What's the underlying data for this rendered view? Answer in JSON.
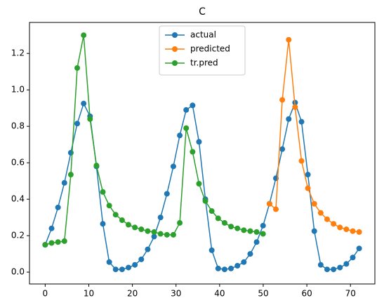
{
  "chart_data": {
    "type": "line",
    "title": "C",
    "x": [
      0,
      1.47,
      2.94,
      4.41,
      5.88,
      7.35,
      8.82,
      10.29,
      11.76,
      13.22,
      14.69,
      16.16,
      17.63,
      19.1,
      20.57,
      22.04,
      23.51,
      24.98,
      26.45,
      27.92,
      29.39,
      30.86,
      32.33,
      33.8,
      35.27,
      36.73,
      38.2,
      39.67,
      41.14,
      42.61,
      44.08,
      45.55,
      47.02,
      48.49,
      49.96,
      51.43,
      52.9,
      54.37,
      55.84,
      57.31,
      58.78,
      60.24,
      61.71,
      63.18,
      64.65,
      66.12,
      67.59,
      69.06,
      70.53,
      72
    ],
    "series": [
      {
        "name": "actual",
        "color": "#1f77b4",
        "values": [
          0.15,
          0.24,
          0.355,
          0.49,
          0.655,
          0.815,
          0.925,
          0.855,
          0.58,
          0.265,
          0.055,
          0.015,
          0.015,
          0.025,
          0.04,
          0.07,
          0.125,
          0.195,
          0.3,
          0.43,
          0.58,
          0.75,
          0.89,
          0.915,
          0.715,
          0.4,
          0.12,
          0.02,
          0.015,
          0.02,
          0.035,
          0.055,
          0.1,
          0.165,
          0.255,
          0.375,
          0.515,
          0.675,
          0.84,
          0.93,
          0.825,
          0.535,
          0.225,
          0.04,
          0.015,
          0.015,
          0.025,
          0.045,
          0.08,
          0.13
        ]
      },
      {
        "name": "predicted",
        "color": "#ff7f0e",
        "values": [
          null,
          null,
          null,
          null,
          null,
          null,
          null,
          null,
          null,
          null,
          null,
          null,
          null,
          null,
          null,
          null,
          null,
          null,
          null,
          null,
          null,
          null,
          null,
          null,
          null,
          null,
          null,
          null,
          null,
          null,
          null,
          null,
          null,
          null,
          null,
          0.375,
          0.345,
          0.945,
          1.275,
          0.905,
          0.61,
          0.46,
          0.375,
          0.325,
          0.29,
          0.265,
          0.245,
          0.235,
          0.225,
          0.22
        ]
      },
      {
        "name": "tr.pred",
        "color": "#2ca02c",
        "values": [
          0.15,
          0.16,
          0.165,
          0.17,
          0.535,
          1.12,
          1.3,
          0.84,
          0.585,
          0.44,
          0.365,
          0.315,
          0.285,
          0.26,
          0.245,
          0.235,
          0.225,
          0.22,
          0.21,
          0.205,
          0.205,
          0.27,
          0.79,
          0.66,
          0.485,
          0.39,
          0.335,
          0.295,
          0.27,
          0.25,
          0.24,
          0.23,
          0.225,
          0.22,
          0.21,
          null,
          null,
          null,
          null,
          null,
          null,
          null,
          null,
          null,
          null,
          null,
          null,
          null,
          null,
          null
        ]
      }
    ],
    "xlim": [
      -3.6,
      75.6
    ],
    "ylim": [
      -0.065,
      1.37
    ],
    "xticks": [
      0,
      10,
      20,
      30,
      40,
      50,
      60,
      70
    ],
    "yticks": [
      {
        "value": 0,
        "label": "0.0"
      },
      {
        "value": 0.2,
        "label": "0.2"
      },
      {
        "value": 0.4,
        "label": "0.4"
      },
      {
        "value": 0.6,
        "label": "0.6"
      },
      {
        "value": 0.8,
        "label": "0.8"
      },
      {
        "value": 1,
        "label": "1.0"
      },
      {
        "value": 1.2,
        "label": "1.2"
      }
    ],
    "legend": "upper center",
    "grid": false
  }
}
